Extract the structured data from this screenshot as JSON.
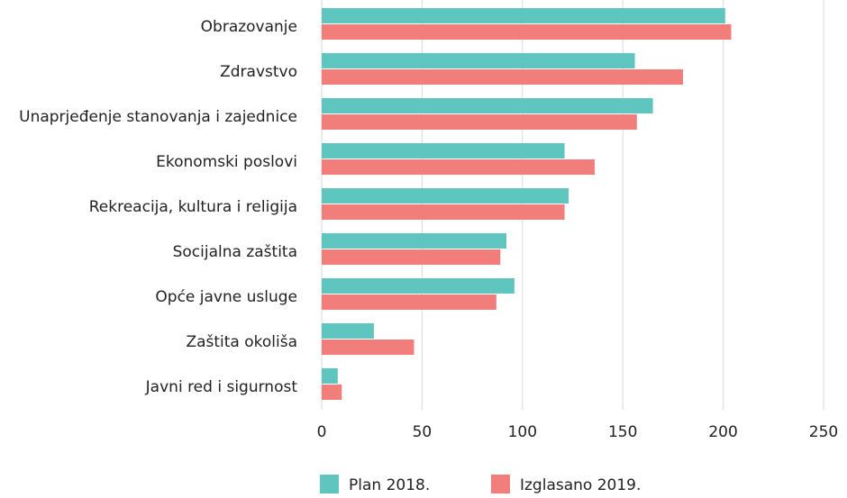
{
  "chart_data": {
    "type": "hbar",
    "categories": [
      "Obrazovanje",
      "Zdravstvo",
      "Unaprjeđenje stanovanja i zajednice",
      "Ekonomski poslovi",
      "Rekreacija, kultura i religija",
      "Socijalna zaštita",
      "Opće javne usluge",
      "Zaštita okoliša",
      "Javni red i sigurnost"
    ],
    "series": [
      {
        "name": "Plan 2018.",
        "color": "#5ec6be",
        "values": [
          201,
          156,
          165,
          121,
          123,
          92,
          96,
          26,
          8
        ]
      },
      {
        "name": "Izglasano 2019.",
        "color": "#f27e7c",
        "values": [
          204,
          180,
          157,
          136,
          121,
          89,
          87,
          46,
          10
        ]
      }
    ],
    "xlim": [
      0,
      250
    ],
    "xticks": [
      0,
      50,
      100,
      150,
      200,
      250
    ],
    "grid": true,
    "legend": "bottom"
  }
}
